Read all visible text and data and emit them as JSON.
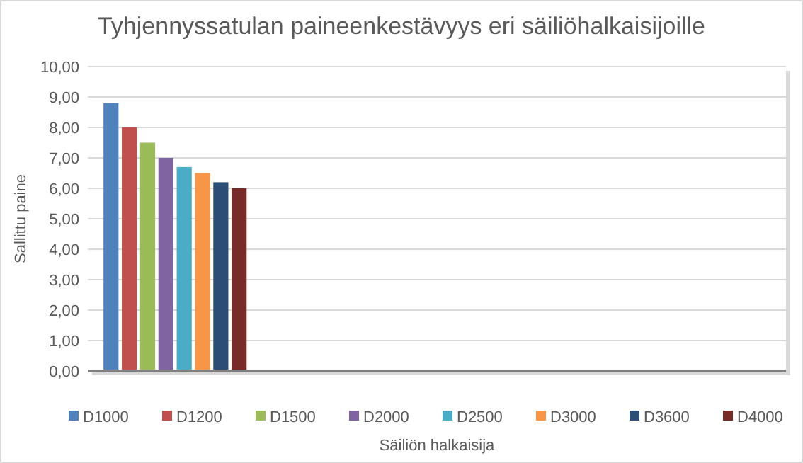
{
  "chart_data": {
    "type": "bar",
    "title": "Tyhjennyssatulan paineenkestävyys eri säiliöhalkaisijoille",
    "xlabel": "Säiliön halkaisija",
    "ylabel": "Sallittu paine",
    "categories": [
      null,
      null,
      null,
      null
    ],
    "series": [
      {
        "name": "D1000",
        "color": "#4f81bd",
        "values": [
          8.8,
          null,
          null,
          null
        ]
      },
      {
        "name": "D1200",
        "color": "#c0504d",
        "values": [
          8.0,
          null,
          null,
          null
        ]
      },
      {
        "name": "D1500",
        "color": "#9bbb59",
        "values": [
          7.5,
          null,
          null,
          null
        ]
      },
      {
        "name": "D2000",
        "color": "#8064a2",
        "values": [
          7.0,
          null,
          null,
          null
        ]
      },
      {
        "name": "D2500",
        "color": "#4bacc6",
        "values": [
          6.7,
          null,
          null,
          null
        ]
      },
      {
        "name": "D3000",
        "color": "#f79646",
        "values": [
          6.5,
          null,
          null,
          null
        ]
      },
      {
        "name": "D3600",
        "color": "#2c4d75",
        "values": [
          6.2,
          null,
          null,
          null
        ]
      },
      {
        "name": "D4000",
        "color": "#772c2a",
        "values": [
          6.0,
          null,
          null,
          null
        ]
      }
    ],
    "ylim": [
      0,
      10
    ],
    "yticks": [
      {
        "value": 0,
        "label": "0,00"
      },
      {
        "value": 1,
        "label": "1,00"
      },
      {
        "value": 2,
        "label": "2,00"
      },
      {
        "value": 3,
        "label": "3,00"
      },
      {
        "value": 4,
        "label": "4,00"
      },
      {
        "value": 5,
        "label": "5,00"
      },
      {
        "value": 6,
        "label": "6,00"
      },
      {
        "value": 7,
        "label": "7,00"
      },
      {
        "value": 8,
        "label": "8,00"
      },
      {
        "value": 9,
        "label": "9,00"
      },
      {
        "value": 10,
        "label": "10,00"
      }
    ],
    "grid": "y",
    "legend": "bottom"
  }
}
